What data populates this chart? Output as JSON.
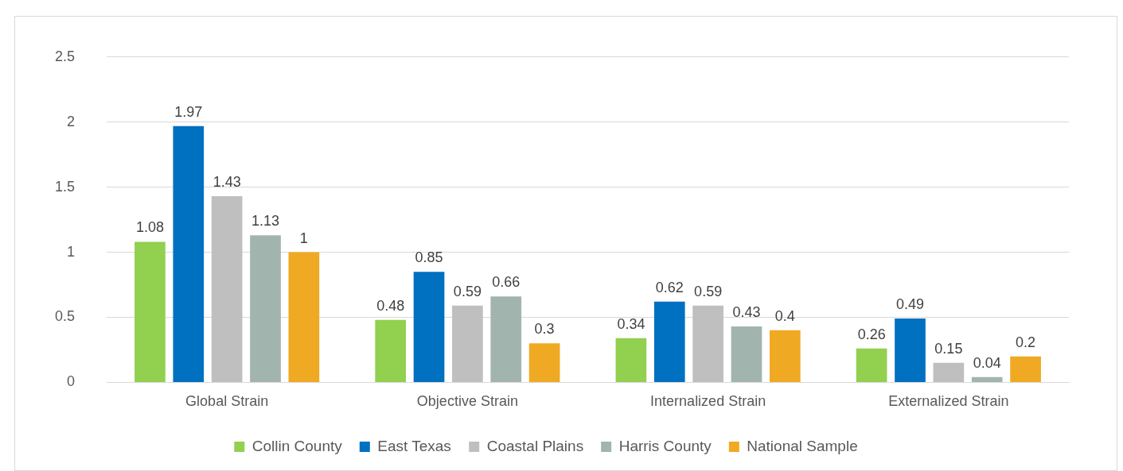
{
  "chart_data": {
    "type": "bar",
    "categories": [
      "Global Strain",
      "Objective Strain",
      "Internalized Strain",
      "Externalized Strain"
    ],
    "series": [
      {
        "name": "Collin County",
        "color": "#92d050",
        "values": [
          1.08,
          0.48,
          0.34,
          0.26
        ]
      },
      {
        "name": "East Texas",
        "color": "#0070c0",
        "values": [
          1.97,
          0.85,
          0.62,
          0.49
        ]
      },
      {
        "name": "Coastal Plains",
        "color": "#bfbfbf",
        "values": [
          1.43,
          0.59,
          0.59,
          0.15
        ]
      },
      {
        "name": "Harris County",
        "color": "#a2b4ae",
        "values": [
          1.13,
          0.66,
          0.43,
          0.04
        ]
      },
      {
        "name": "National Sample",
        "color": "#f0a922",
        "values": [
          1,
          0.3,
          0.4,
          0.2
        ]
      }
    ],
    "ylim": [
      0,
      2.5
    ],
    "yticks": [
      0,
      0.5,
      1,
      1.5,
      2,
      2.5
    ],
    "grid": "y",
    "legend": "bottom",
    "data_labels": true
  }
}
